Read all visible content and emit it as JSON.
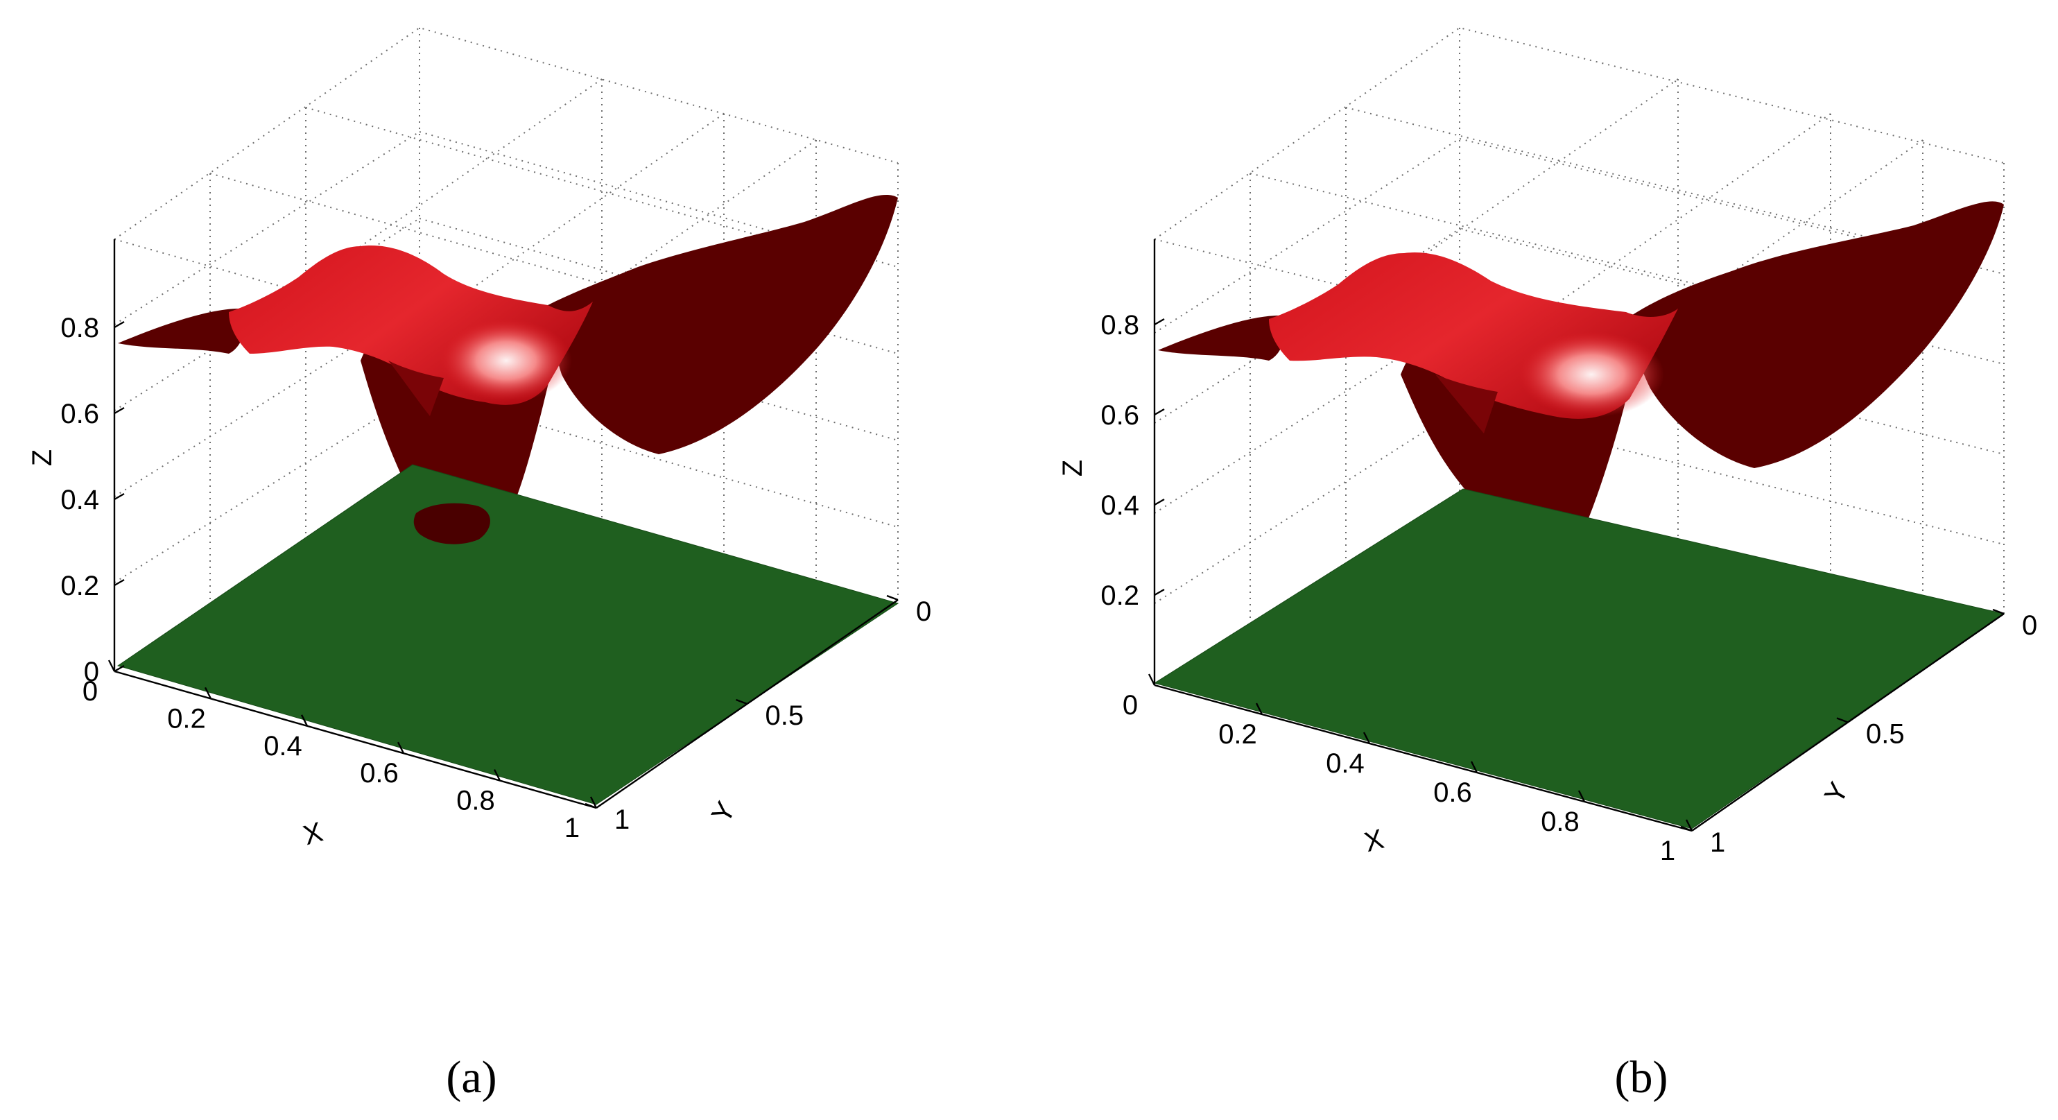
{
  "chart_data": [
    {
      "type": "surface",
      "caption": "(a)",
      "xlabel": "X",
      "ylabel": "Y",
      "zlabel": "Z",
      "xlim": [
        0,
        1
      ],
      "ylim": [
        0,
        1
      ],
      "zlim": [
        0,
        1
      ],
      "xticks": [
        "0",
        "0.2",
        "0.4",
        "0.6",
        "0.8",
        "1"
      ],
      "yticks": [
        "0",
        "0.5",
        "1"
      ],
      "zticks": [
        "0",
        "0.2",
        "0.4",
        "0.6",
        "0.8"
      ],
      "grid": true,
      "surfaces": [
        {
          "name": "upper surface",
          "color": "#c8101a",
          "shadow_color": "#4a0000",
          "highlight_color": "#fbe2e2",
          "z_range": [
            0.49,
            1.0
          ]
        },
        {
          "name": "lower surface",
          "color": "#1f5f1f",
          "z_value": 0
        }
      ],
      "spot": {
        "color": "#4a0000",
        "x": 0.35,
        "y": 0.05
      }
    },
    {
      "type": "surface",
      "caption": "(b)",
      "xlabel": "X",
      "ylabel": "Y",
      "zlabel": "Z",
      "xlim": [
        0,
        1
      ],
      "ylim": [
        0,
        1
      ],
      "zlim": [
        0,
        1
      ],
      "xticks": [
        "0",
        "0.2",
        "0.4",
        "0.6",
        "0.8",
        "1"
      ],
      "yticks": [
        "0",
        "0.5",
        "1"
      ],
      "zticks": [
        "0.2",
        "0.4",
        "0.6",
        "0.8"
      ],
      "grid": true,
      "surfaces": [
        {
          "name": "upper surface",
          "color": "#c8101a",
          "shadow_color": "#4a0000",
          "highlight_color": "#fbe2e2",
          "z_range": [
            0.49,
            1.0
          ]
        },
        {
          "name": "lower surface",
          "color": "#1f5f1f",
          "z_value": 0
        }
      ]
    }
  ]
}
